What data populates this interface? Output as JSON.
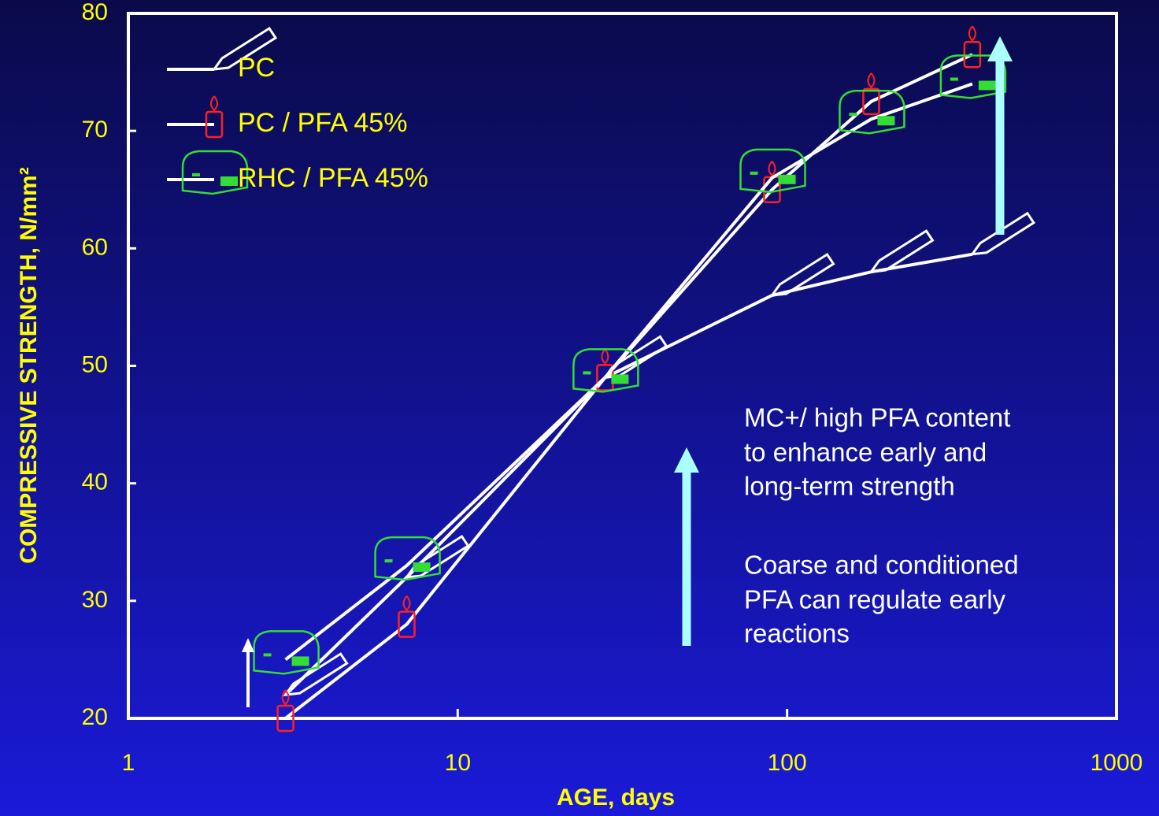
{
  "chart_data": {
    "type": "line",
    "x_label": "AGE, days",
    "y_label": "COMPRESSIVE STRENGTH, N/mm²",
    "x": [
      3,
      7,
      28,
      90,
      180,
      365
    ],
    "series": [
      {
        "name": "PC",
        "color": "#ffffff",
        "marker": "pencil",
        "marker_color": "#ffffff",
        "values": [
          22,
          32,
          49,
          56,
          58,
          59.5
        ]
      },
      {
        "name": "PC / PFA 45%",
        "color": "#ffffff",
        "marker": "candle",
        "marker_color": "#ff2020",
        "values": [
          20,
          28,
          49,
          65,
          72.5,
          76.5
        ]
      },
      {
        "name": "RHC / PFA 45%",
        "color": "#ffffff",
        "marker": "box",
        "marker_color": "#33dd33",
        "values": [
          25,
          33,
          49,
          66,
          71,
          74
        ]
      }
    ],
    "xlim": [
      1,
      1000
    ],
    "xticks": [
      1,
      10,
      100,
      1000
    ],
    "xscale": "log",
    "ylim": [
      20,
      80
    ],
    "yticks": [
      20,
      30,
      40,
      50,
      60,
      70,
      80
    ],
    "legend": "upper left",
    "annotations": [
      [
        "MC+/ high PFA  content",
        "to enhance early and",
        "long-term strength"
      ],
      [
        "Coarse and conditioned",
        "PFA can regulate early",
        "reactions"
      ]
    ]
  }
}
